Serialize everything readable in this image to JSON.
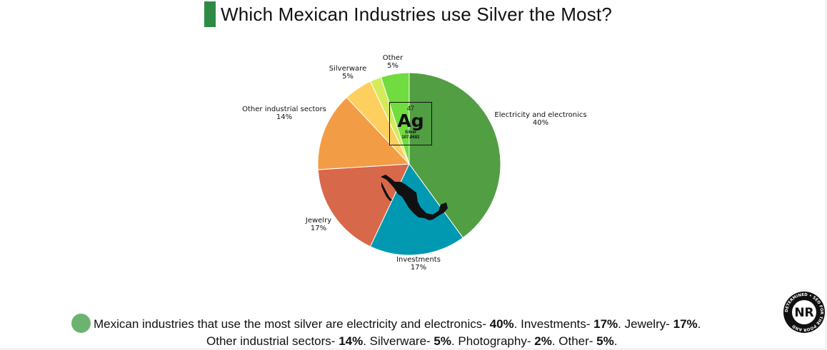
{
  "title": "Which Mexican Industries use Silver the Most?",
  "chart_data": {
    "type": "pie",
    "title": "Which Mexican Industries use Silver the Most?",
    "slices": [
      {
        "label": "Electricity and electronics",
        "value": 40,
        "value_label": "40%",
        "color": "#529e43"
      },
      {
        "label": "Investments",
        "value": 17,
        "value_label": "17%",
        "color": "#0198b1"
      },
      {
        "label": "Jewelry",
        "value": 17,
        "value_label": "17%",
        "color": "#d76849"
      },
      {
        "label": "Other industrial sectors",
        "value": 14,
        "value_label": "14%",
        "color": "#f29d46"
      },
      {
        "label": "Silverware",
        "value": 5,
        "value_label": "5%",
        "color": "#fdcf5e"
      },
      {
        "label": "Photography",
        "value": 2,
        "value_label": "",
        "color": "#d5ea5a"
      },
      {
        "label": "Other",
        "value": 5,
        "value_label": "5%",
        "color": "#71dc3f"
      }
    ]
  },
  "element_tile": {
    "number": "47",
    "symbol": "Ag",
    "name": "Silver",
    "mass": "107.8682"
  },
  "summary": {
    "line1_text": "Mexican industries that use the most silver are electricity and electronics- ",
    "v1": "40%",
    "s1": ". Investments- ",
    "v2": "17%",
    "s2": ". Jewelry- ",
    "v3": "17%",
    "s3": ".",
    "line2_text": "Other industrial sectors- ",
    "v4": "14%",
    "s4": ". Silverware- ",
    "v5": "5%",
    "s5": ". Photography- ",
    "v6": "2%",
    "s6": ". Other- ",
    "v7": "5%",
    "s7": "."
  },
  "logo": {
    "initials": "NR",
    "ring_text": "DETERMINED • SEO FOR THE POOR AND"
  }
}
